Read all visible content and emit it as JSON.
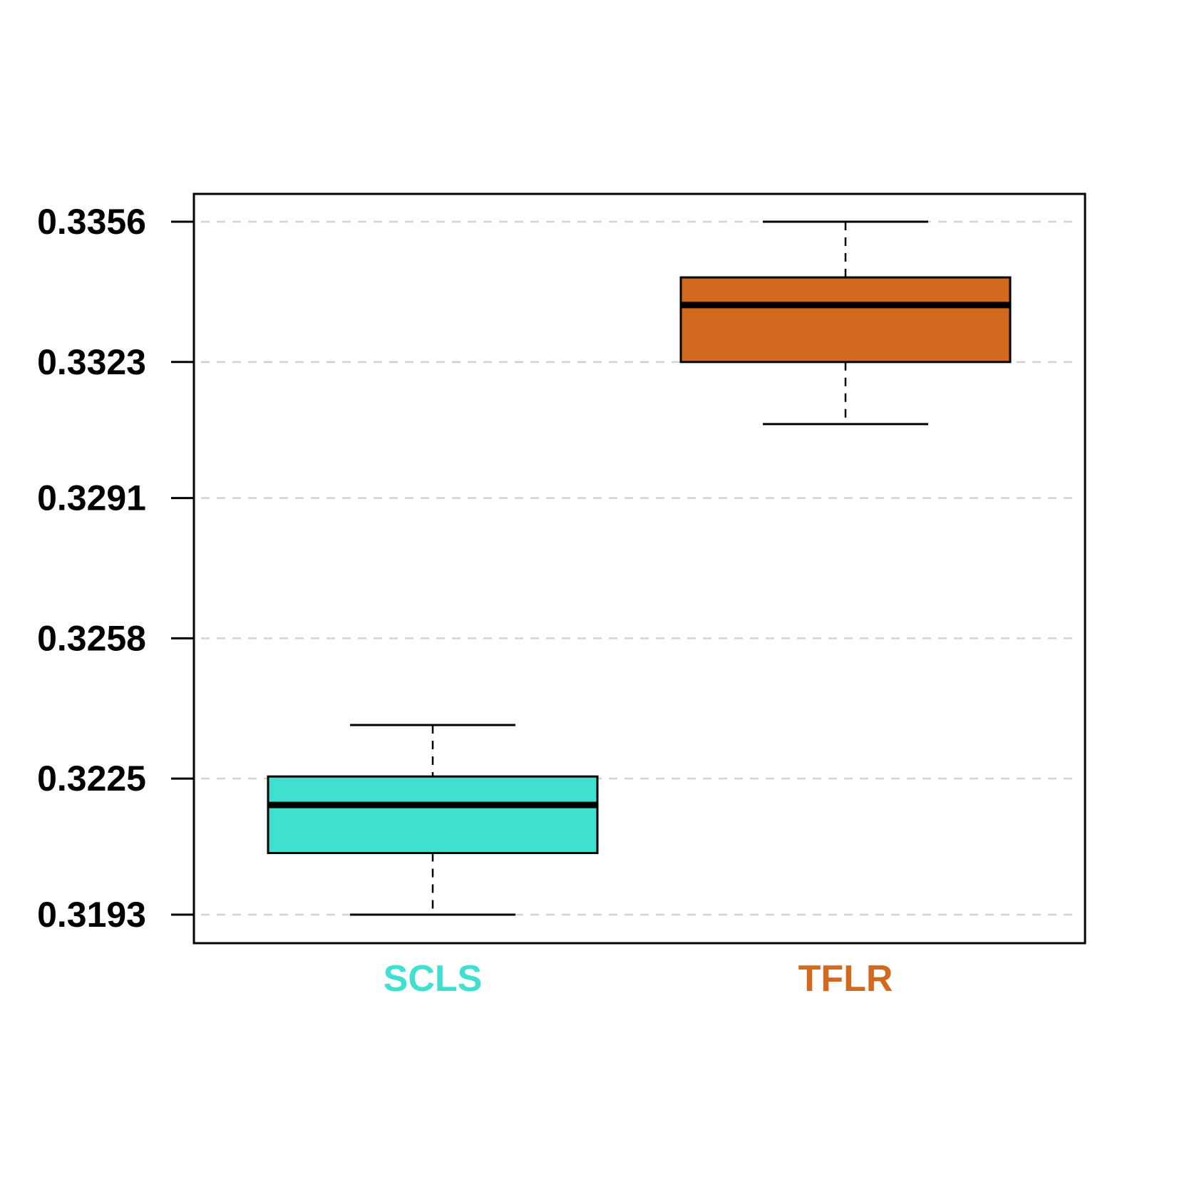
{
  "chart_data": {
    "type": "boxplot",
    "title": "",
    "xlabel": "",
    "ylabel": "",
    "ylim": [
      0.3186,
      0.3363
    ],
    "y_ticks": [
      "0.3193",
      "0.3225",
      "0.3258",
      "0.3291",
      "0.3323",
      "0.3356"
    ],
    "grid": "horizontal dashed",
    "categories": [
      "SCLS",
      "TFLR"
    ],
    "boxes": [
      {
        "category": "SCLS",
        "color": "#40E0D0",
        "min": 0.3193,
        "q1": 0.32075,
        "median": 0.32188,
        "q3": 0.32255,
        "max": 0.32376
      },
      {
        "category": "TFLR",
        "color": "#D2691E",
        "min": 0.33084,
        "q1": 0.3323,
        "median": 0.33364,
        "q3": 0.33429,
        "max": 0.3356
      }
    ]
  }
}
